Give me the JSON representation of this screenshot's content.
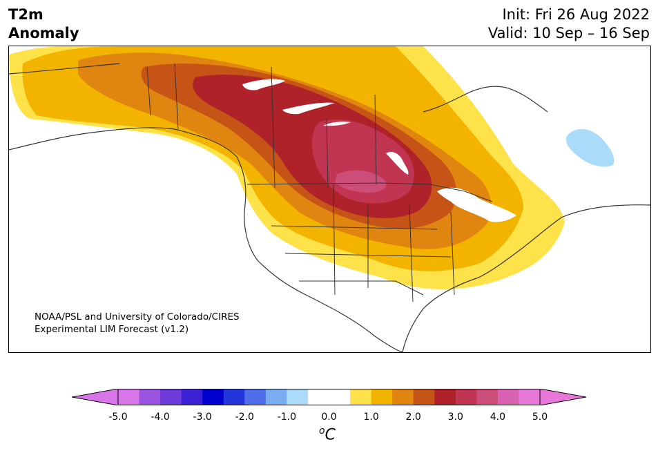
{
  "header": {
    "variable_line1": "T2m",
    "variable_line2": "Anomaly",
    "init_text": "Init: Fri 26 Aug 2022",
    "valid_text": "Valid: 10 Sep – 16 Sep"
  },
  "map": {
    "region": "North America",
    "credit_line1": "NOAA/PSL and University of Colorado/CIRES",
    "credit_line2": "Experimental LIM Forecast (v1.2)"
  },
  "colorbar": {
    "tick_labels": [
      "-5.0",
      "-4.0",
      "-3.0",
      "-2.0",
      "-1.0",
      "0.0",
      "1.0",
      "2.0",
      "3.0",
      "4.0",
      "5.0"
    ],
    "unit_base": "o",
    "unit_letter": "C",
    "colors": [
      "#d875e8",
      "#9b55e0",
      "#6e3ad8",
      "#3a22d4",
      "#0000cd",
      "#2336dc",
      "#4d6ee8",
      "#79acf0",
      "#aadcfa",
      "#ffffff",
      "#ffffff",
      "#fee24a",
      "#f3b400",
      "#e08510",
      "#c65417",
      "#b0222a",
      "#c13552",
      "#cc4d79",
      "#da62b2",
      "#e878d8"
    ]
  }
}
